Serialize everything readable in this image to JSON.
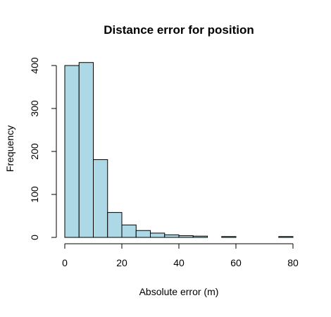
{
  "chart_data": {
    "type": "histogram",
    "title": "Distance error for position",
    "xlabel": "Absolute error (m)",
    "ylabel": "Frequency",
    "xlim": [
      0,
      80
    ],
    "ylim": [
      0,
      400
    ],
    "bin_width": 5,
    "bins": [
      {
        "x0": 0,
        "x1": 5,
        "count": 400
      },
      {
        "x0": 5,
        "x1": 10,
        "count": 407
      },
      {
        "x0": 10,
        "x1": 15,
        "count": 181
      },
      {
        "x0": 15,
        "x1": 20,
        "count": 58
      },
      {
        "x0": 20,
        "x1": 25,
        "count": 29
      },
      {
        "x0": 25,
        "x1": 30,
        "count": 16
      },
      {
        "x0": 30,
        "x1": 35,
        "count": 10
      },
      {
        "x0": 35,
        "x1": 40,
        "count": 6
      },
      {
        "x0": 40,
        "x1": 45,
        "count": 4
      },
      {
        "x0": 45,
        "x1": 50,
        "count": 3
      },
      {
        "x0": 50,
        "x1": 55,
        "count": 0
      },
      {
        "x0": 55,
        "x1": 60,
        "count": 2
      },
      {
        "x0": 60,
        "x1": 65,
        "count": 0
      },
      {
        "x0": 65,
        "x1": 70,
        "count": 0
      },
      {
        "x0": 70,
        "x1": 75,
        "count": 0
      },
      {
        "x0": 75,
        "x1": 80,
        "count": 2
      }
    ],
    "x_ticks": [
      0,
      20,
      40,
      60,
      80
    ],
    "y_ticks": [
      0,
      100,
      200,
      300,
      400
    ],
    "bar_fill": "#add8e6",
    "bar_stroke": "#000000",
    "grid": false,
    "legend": "none"
  }
}
